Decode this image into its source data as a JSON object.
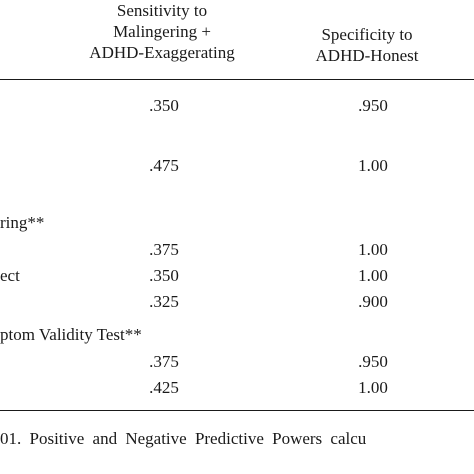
{
  "table": {
    "header": {
      "sensitivity": [
        "Sensitivity to",
        "Malingering +",
        "ADHD-Exaggerating"
      ],
      "specificity": [
        "Specificity to",
        "ADHD-Honest"
      ]
    },
    "groups": [
      {
        "label": "",
        "rows": [
          {
            "label": "",
            "sensitivity": ".350",
            "specificity": ".950"
          },
          {
            "label": "",
            "sensitivity": ".475",
            "specificity": "1.00"
          }
        ]
      },
      {
        "label": "ring**",
        "rows": [
          {
            "label": "",
            "sensitivity": ".375",
            "specificity": "1.00"
          },
          {
            "label": "ect",
            "sensitivity": ".350",
            "specificity": "1.00"
          },
          {
            "label": "",
            "sensitivity": ".325",
            "specificity": ".900"
          }
        ]
      },
      {
        "label": "ptom Validity Test**",
        "rows": [
          {
            "label": "",
            "sensitivity": ".375",
            "specificity": ".950"
          },
          {
            "label": "",
            "sensitivity": ".425",
            "specificity": "1.00"
          }
        ]
      }
    ]
  },
  "caption": "01. Positive and Negative Predictive Powers calcu"
}
